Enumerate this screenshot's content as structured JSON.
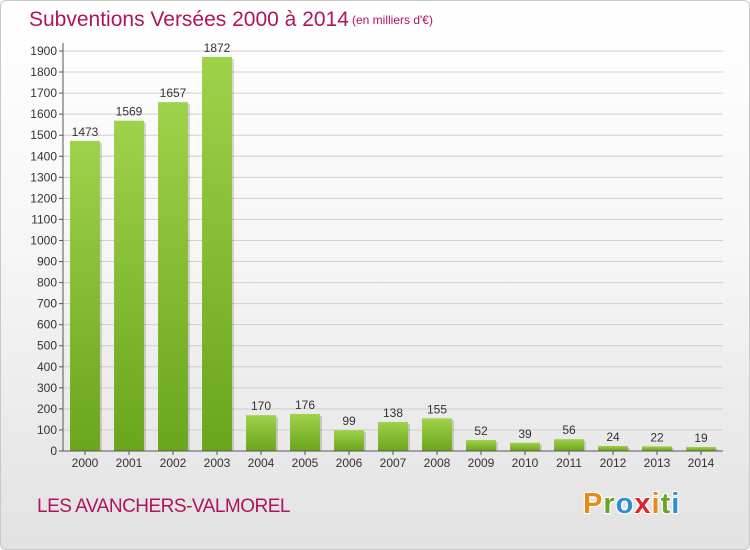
{
  "title": "Subventions Versées 2000 à 2014",
  "subtitle": "(en milliers d'€)",
  "commune": "LES AVANCHERS-VALMOREL",
  "logo": {
    "letters": [
      "P",
      "r",
      "o",
      "x",
      "i",
      "t",
      "i"
    ],
    "colors": [
      "#e8891a",
      "#6aa329",
      "#2f8fd1",
      "#d9262c",
      "#e8891a",
      "#6aa329",
      "#2f8fd1"
    ]
  },
  "colors": {
    "bar_light": "#9ed24a",
    "bar_dark": "#6aa51c",
    "grid": "#cfcfcf",
    "text_accent": "#b0135f"
  },
  "chart_data": {
    "type": "bar",
    "categories": [
      "2000",
      "2001",
      "2002",
      "2003",
      "2004",
      "2005",
      "2006",
      "2007",
      "2008",
      "2009",
      "2010",
      "2011",
      "2012",
      "2013",
      "2014"
    ],
    "values": [
      1473,
      1569,
      1657,
      1872,
      170,
      176,
      99,
      138,
      155,
      52,
      39,
      56,
      24,
      22,
      19
    ],
    "title": "Subventions Versées 2000 à 2014",
    "ylim": [
      0,
      1900
    ],
    "yticks": [
      0,
      100,
      200,
      300,
      400,
      500,
      600,
      700,
      800,
      900,
      1000,
      1100,
      1200,
      1300,
      1400,
      1500,
      1600,
      1700,
      1800,
      1900
    ],
    "grid": true
  }
}
